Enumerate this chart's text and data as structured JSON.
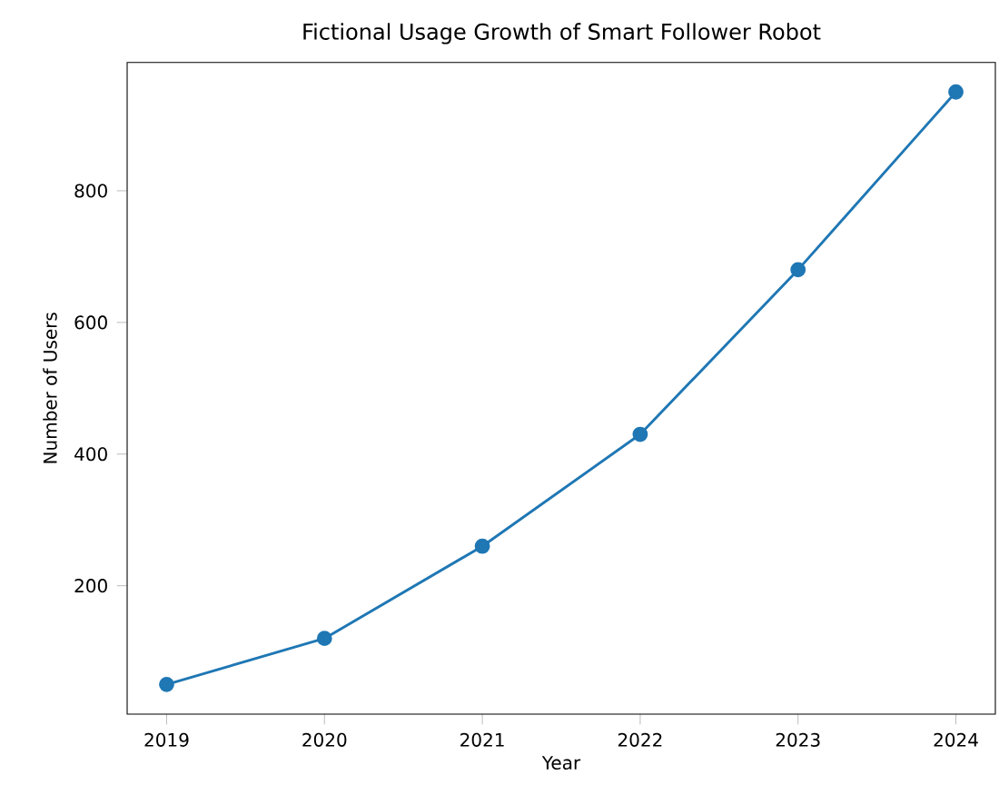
{
  "chart_data": {
    "type": "line",
    "title": "Fictional Usage Growth of Smart Follower Robot",
    "xlabel": "Year",
    "ylabel": "Number of Users",
    "x": [
      2019,
      2020,
      2021,
      2022,
      2023,
      2024
    ],
    "series": [
      {
        "color": "#1f77b4",
        "values": [
          50,
          120,
          260,
          430,
          680,
          950
        ]
      }
    ],
    "xlim": [
      2018.75,
      2024.25
    ],
    "xticks": [
      2019,
      2020,
      2021,
      2022,
      2023,
      2024
    ],
    "ylim": [
      5,
      995
    ],
    "yticks": [
      200,
      400,
      600,
      800
    ],
    "marker": "circle",
    "line_style": "solid"
  }
}
